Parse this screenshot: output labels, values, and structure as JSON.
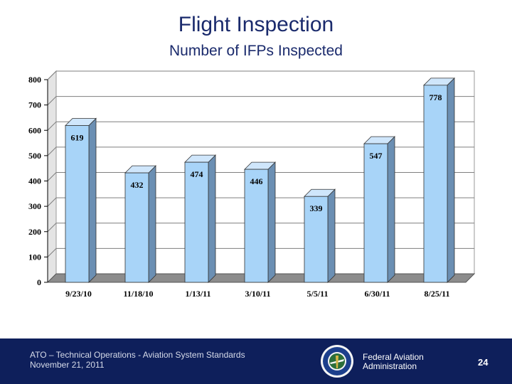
{
  "header": {
    "title": "Flight Inspection",
    "subtitle": "Number of IFPs Inspected"
  },
  "chart_data": {
    "type": "bar",
    "title": "Number of IFPs Inspected",
    "categories": [
      "9/23/10",
      "11/18/10",
      "1/13/11",
      "3/10/11",
      "5/5/11",
      "6/30/11",
      "8/25/11"
    ],
    "values": [
      619,
      432,
      474,
      446,
      339,
      547,
      778
    ],
    "ylim": [
      0,
      800
    ],
    "yticks": [
      0,
      100,
      200,
      300,
      400,
      500,
      600,
      700,
      800
    ],
    "xlabel": "",
    "ylabel": "",
    "grid": true,
    "legend": "none",
    "bar_color": "#a8d4f8"
  },
  "footer": {
    "org_line": "ATO – Technical Operations - Aviation System Standards",
    "date": "November 21, 2011",
    "faa_line1": "Federal Aviation",
    "faa_line2": "Administration",
    "page_number": "24",
    "seal_icon": "faa-seal-icon"
  }
}
